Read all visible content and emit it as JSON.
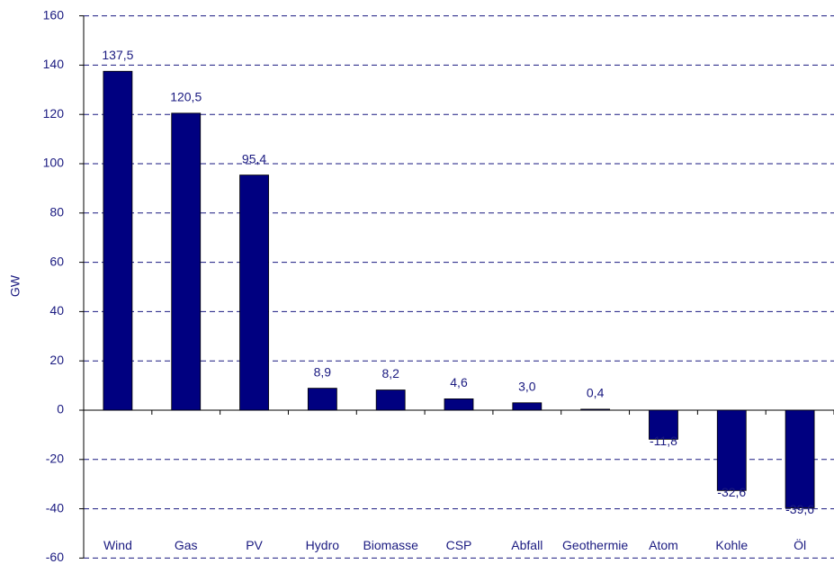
{
  "chart_data": {
    "type": "bar",
    "y_label": "GW",
    "categories": [
      "Wind",
      "Gas",
      "PV",
      "Hydro",
      "Biomasse",
      "CSP",
      "Abfall",
      "Geothermie",
      "Atom",
      "Kohle",
      "Öl"
    ],
    "values": [
      137.5,
      120.5,
      95.4,
      8.9,
      8.2,
      4.6,
      3.0,
      0.4,
      -11.8,
      -32.6,
      -39.6
    ],
    "value_labels": [
      "137,5",
      "120,5",
      "95,4",
      "8,9",
      "8,2",
      "4,6",
      "3,0",
      "0,4",
      "-11,8",
      "-32,6",
      "-39,6"
    ],
    "color": "#000080",
    "ylim": [
      -60,
      160
    ],
    "yticks": [
      -60,
      -40,
      -20,
      0,
      20,
      40,
      60,
      80,
      100,
      120,
      140,
      160
    ],
    "grid": true
  }
}
